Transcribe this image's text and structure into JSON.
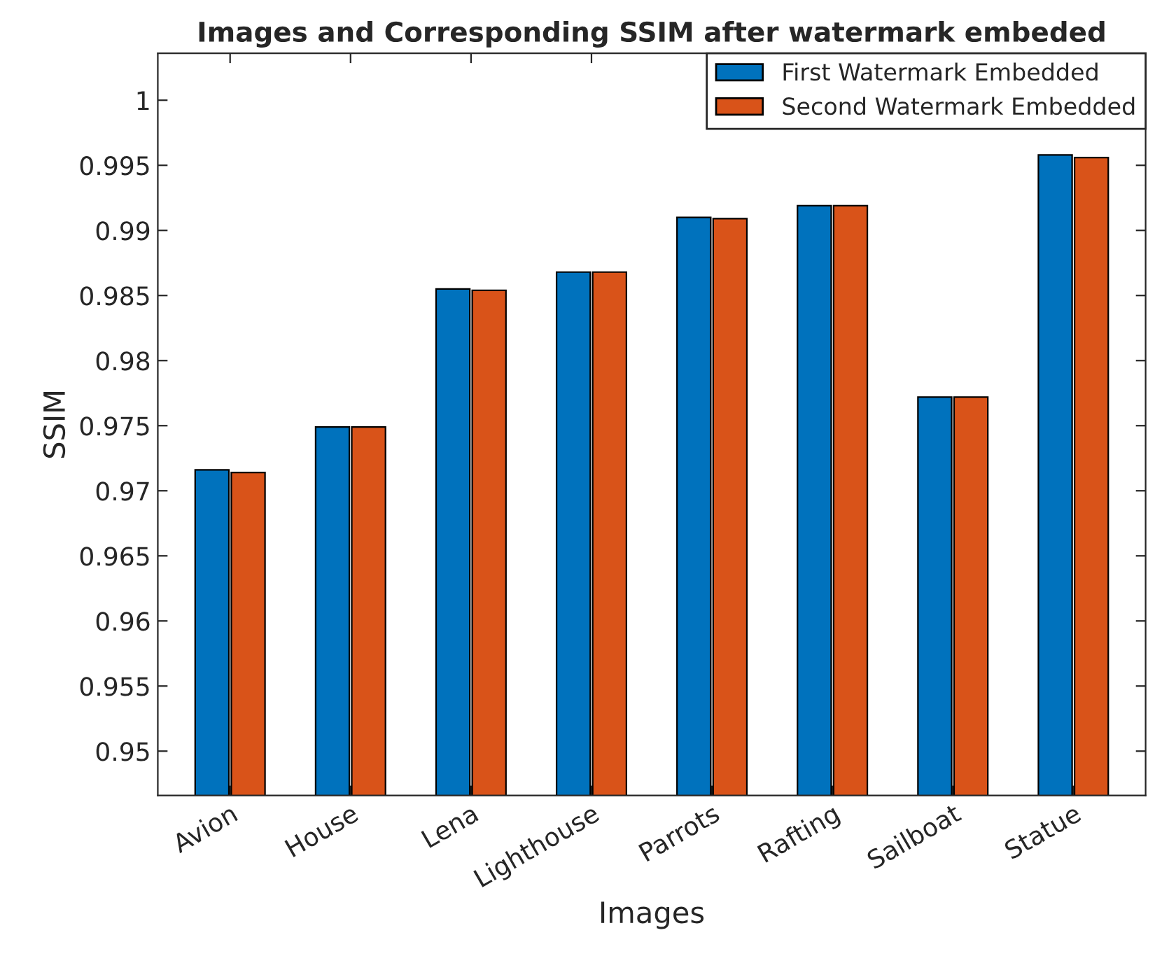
{
  "chart_data": {
    "type": "bar",
    "title": "Images and Corresponding SSIM after watermark embeded",
    "xlabel": "Images",
    "ylabel": "SSIM",
    "categories": [
      "Avion",
      "House",
      "Lena",
      "Lighthouse",
      "Parrots",
      "Rafting",
      "Sailboat",
      "Statue"
    ],
    "series": [
      {
        "name": "First Watermark Embedded",
        "color": "#0072bd",
        "values": [
          0.9716,
          0.9749,
          0.9855,
          0.9868,
          0.991,
          0.9919,
          0.9772,
          0.9958
        ]
      },
      {
        "name": "Second Watermark Embedded",
        "color": "#d95319",
        "values": [
          0.9714,
          0.9749,
          0.9854,
          0.9868,
          0.9909,
          0.9919,
          0.9772,
          0.9956
        ]
      }
    ],
    "ylim": [
      0.9466,
      1.0036
    ],
    "yticks": [
      0.95,
      0.955,
      0.96,
      0.965,
      0.97,
      0.975,
      0.98,
      0.985,
      0.99,
      0.995,
      1
    ],
    "grid": false,
    "legend": "top right"
  }
}
